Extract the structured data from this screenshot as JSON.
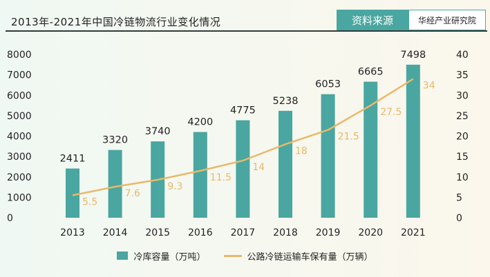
{
  "header": {
    "title": "2013年-2021年中国冷链物流行业变化情况",
    "source_label": "资料来源",
    "source_value": "华经产业研究院"
  },
  "colors": {
    "bar": "#4aa6a0",
    "line": "#e9b86a",
    "line_label": "#e9b86a",
    "text": "#222222"
  },
  "chart_data": {
    "type": "bar",
    "categories": [
      "2013",
      "2014",
      "2015",
      "2016",
      "2017",
      "2018",
      "2019",
      "2020",
      "2021"
    ],
    "series": [
      {
        "name": "冷库容量（万吨）",
        "type": "bar",
        "axis": "left",
        "values": [
          2411,
          3320,
          3740,
          4200,
          4775,
          5238,
          6053,
          6665,
          7498
        ]
      },
      {
        "name": "公路冷链运输车保有量（万辆）",
        "type": "line",
        "axis": "right",
        "values": [
          5.5,
          7.6,
          9.3,
          11.5,
          14,
          18,
          21.5,
          27.5,
          34
        ]
      }
    ],
    "bar_labels": [
      "2411",
      "3320",
      "3740",
      "4200",
      "4775",
      "5238",
      "6053",
      "6665",
      "7498"
    ],
    "line_labels": [
      "5.5",
      "7.6",
      "9.3",
      "11.5",
      "14",
      "18",
      "21.5",
      "27.5",
      "34"
    ],
    "y_left": {
      "min": 0,
      "max": 8000,
      "ticks": [
        "0",
        "1000",
        "2000",
        "3000",
        "4000",
        "5000",
        "6000",
        "7000",
        "8000"
      ]
    },
    "y_right": {
      "min": 0,
      "max": 40,
      "ticks": [
        "0",
        "5",
        "10",
        "15",
        "20",
        "25",
        "30",
        "35",
        "40"
      ]
    },
    "grid": false,
    "legend_position": "bottom"
  }
}
